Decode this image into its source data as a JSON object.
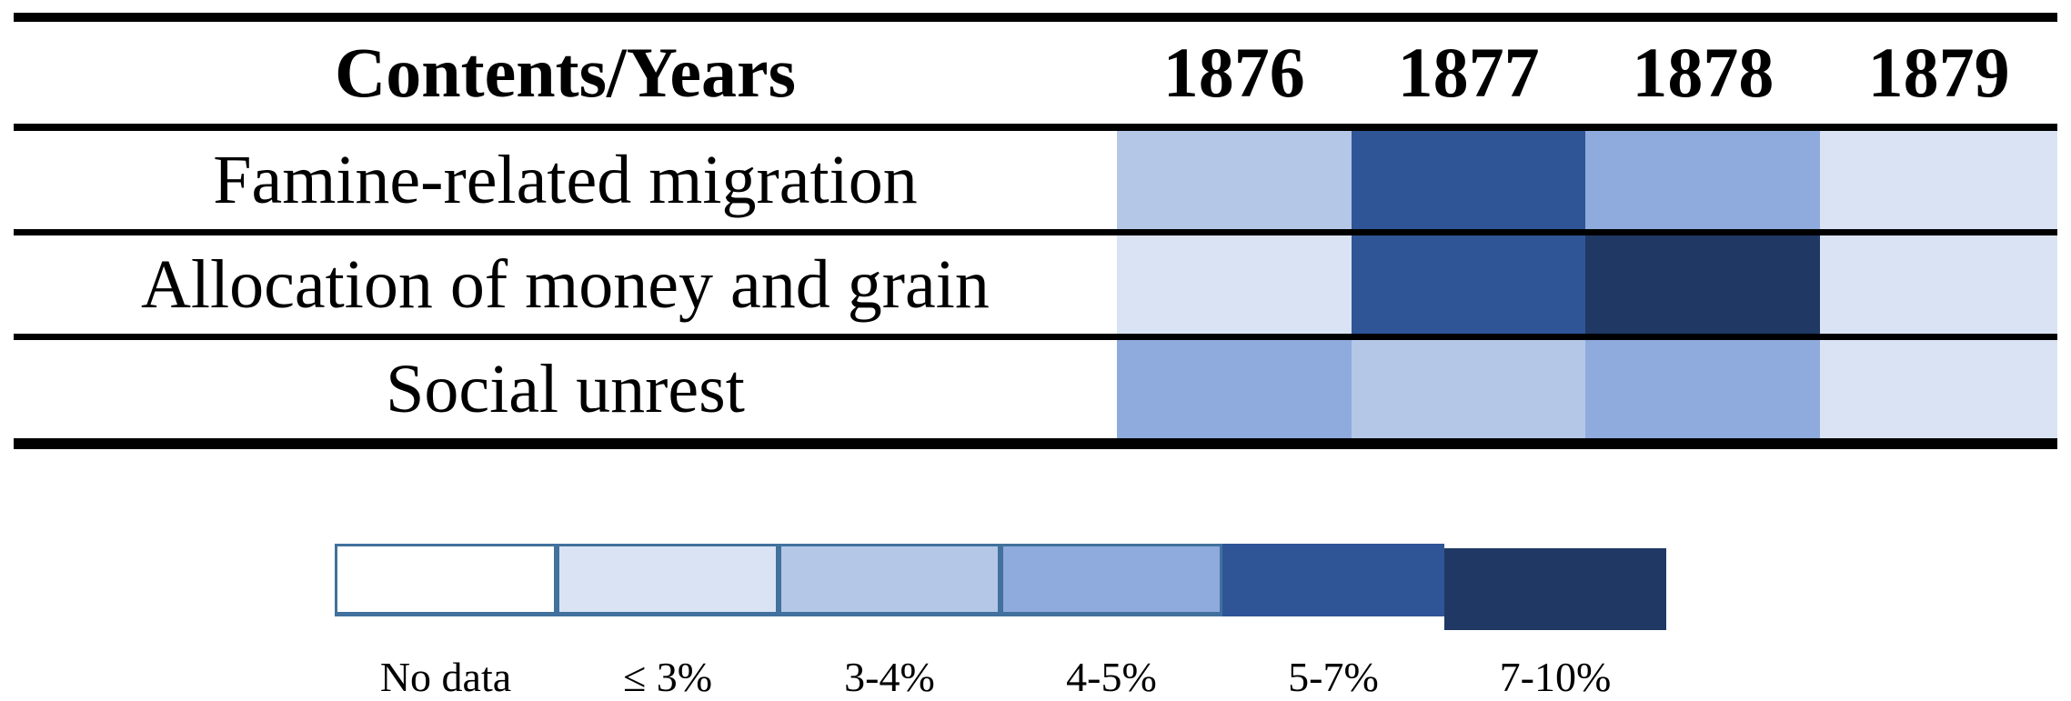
{
  "chart_data": {
    "type": "heatmap",
    "corner_label": "Contents/Years",
    "columns": [
      "1876",
      "1877",
      "1878",
      "1879"
    ],
    "rows": [
      {
        "label": "Famine-related migration",
        "values": [
          "3-4%",
          "5-7%",
          "4-5%",
          "≤ 3%"
        ]
      },
      {
        "label": "Allocation of money and grain",
        "values": [
          "≤ 3%",
          "5-7%",
          "7-10%",
          "≤ 3%"
        ]
      },
      {
        "label": "Social unrest",
        "values": [
          "4-5%",
          "3-4%",
          "4-5%",
          "≤ 3%"
        ]
      }
    ],
    "legend": [
      {
        "label": "No data",
        "color": "#FFFFFF",
        "bordered": true
      },
      {
        "label": "≤ 3%",
        "color": "#DAE3F3",
        "bordered": true
      },
      {
        "label": "3-4%",
        "color": "#B4C7E7",
        "bordered": true
      },
      {
        "label": "4-5%",
        "color": "#8FAADC",
        "bordered": true
      },
      {
        "label": "5-7%",
        "color": "#2F5597",
        "bordered": false
      },
      {
        "label": "7-10%",
        "color": "#1F3864",
        "bordered": false
      }
    ],
    "legend_position": "bottom",
    "grid": false,
    "styles": {
      "rule_color": "#000000",
      "swatch_border_color": "#41719C",
      "text_color": "#000000"
    }
  }
}
